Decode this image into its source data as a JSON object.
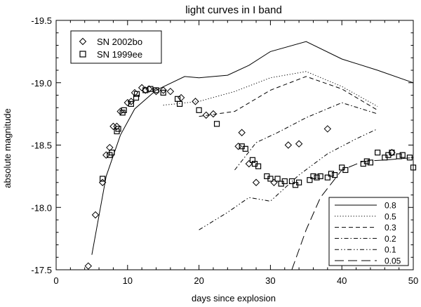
{
  "chart_data": {
    "type": "scatter",
    "title": "light curves in I band",
    "xlabel": "days since explosion",
    "ylabel": "absolute magnitude",
    "xlim": [
      0,
      50
    ],
    "ylim": [
      -17.5,
      -19.5
    ],
    "y_axis_inverted": true,
    "x_ticks": [
      0,
      10,
      20,
      30,
      40,
      50
    ],
    "x_tick_labels": [
      "0",
      "10",
      "20",
      "30",
      "40",
      "50"
    ],
    "y_ticks": [
      -19.5,
      -19.0,
      -18.5,
      -18.0,
      -17.5
    ],
    "y_tick_labels": [
      "-19.5",
      "-19.0",
      "-18.5",
      "-18.0",
      "-17.5"
    ],
    "grid": false,
    "marker_legend": {
      "placement": "top-left",
      "entries": [
        {
          "label": "SN 2002bo",
          "marker": "diamond"
        },
        {
          "label": "SN 1999ee",
          "marker": "square"
        }
      ]
    },
    "line_legend": {
      "placement": "bottom-right",
      "entries": [
        {
          "label": "0.8",
          "style": "solid"
        },
        {
          "label": "0.5",
          "style": "dotted"
        },
        {
          "label": "0.3",
          "style": "dashed"
        },
        {
          "label": "0.2",
          "style": "dash-dot"
        },
        {
          "label": "0.1",
          "style": "dash-dot-dot"
        },
        {
          "label": "0.05",
          "style": "long-dash"
        }
      ]
    },
    "points": [
      {
        "name": "SN 2002bo",
        "marker": "diamond",
        "x": [
          4.5,
          5.5,
          6.5,
          7,
          7.5,
          8,
          8.5,
          9,
          10,
          10.5,
          11,
          12,
          12.5,
          13,
          14,
          15,
          16,
          17.5,
          19.5,
          21,
          22,
          25.5,
          26,
          27,
          28,
          30.5,
          32.5,
          34,
          38,
          47
        ],
        "y": [
          -17.53,
          -17.94,
          -18.2,
          -18.42,
          -18.48,
          -18.65,
          -18.65,
          -18.77,
          -18.84,
          -18.85,
          -18.92,
          -18.96,
          -18.94,
          -18.95,
          -18.93,
          -18.94,
          -18.93,
          -18.88,
          -18.85,
          -18.74,
          -18.75,
          -18.49,
          -18.6,
          -18.35,
          -18.2,
          -18.2,
          -18.5,
          -18.51,
          -18.63,
          -18.44
        ]
      },
      {
        "name": "SN 1999ee",
        "marker": "square",
        "x": [
          6.5,
          7.5,
          7.8,
          8.5,
          8.7,
          9.3,
          9.5,
          10.5,
          11.2,
          11.3,
          12.5,
          13.2,
          14,
          15,
          17,
          17.3,
          20,
          22.5,
          26,
          26.5,
          27.5,
          27.8,
          28.3,
          29.5,
          30,
          31,
          31.5,
          32,
          33,
          33.5,
          34,
          35.5,
          36,
          36.5,
          37,
          38,
          38.5,
          39,
          40,
          40.5,
          43,
          43.5,
          44,
          45,
          46,
          46.5,
          47,
          48,
          48.5,
          49.5,
          50
        ],
        "y": [
          -18.23,
          -18.42,
          -18.44,
          -18.61,
          -18.63,
          -18.76,
          -18.78,
          -18.83,
          -18.88,
          -18.91,
          -18.94,
          -18.95,
          -18.94,
          -18.92,
          -18.87,
          -18.83,
          -18.78,
          -18.67,
          -18.49,
          -18.47,
          -18.38,
          -18.35,
          -18.33,
          -18.25,
          -18.23,
          -18.23,
          -18.19,
          -18.21,
          -18.21,
          -18.18,
          -18.2,
          -18.22,
          -18.25,
          -18.24,
          -18.25,
          -18.24,
          -18.27,
          -18.26,
          -18.32,
          -18.3,
          -18.35,
          -18.37,
          -18.36,
          -18.44,
          -18.4,
          -18.42,
          -18.44,
          -18.41,
          -18.42,
          -18.4,
          -18.32
        ]
      }
    ],
    "series": [
      {
        "name": "0.8",
        "style": "solid",
        "x": [
          5,
          7,
          9,
          11,
          14,
          18,
          20,
          22,
          24,
          27,
          30,
          35,
          40,
          45,
          50
        ],
        "y": [
          -17.62,
          -18.25,
          -18.58,
          -18.79,
          -18.94,
          -19.05,
          -19.04,
          -19.05,
          -19.06,
          -19.14,
          -19.25,
          -19.33,
          -19.19,
          -19.1,
          -19.0
        ]
      },
      {
        "name": "0.5",
        "style": "dotted",
        "x": [
          15,
          20,
          25,
          30,
          35,
          40,
          45
        ],
        "y": [
          -18.82,
          -18.85,
          -18.93,
          -19.04,
          -19.09,
          -18.97,
          -18.81
        ]
      },
      {
        "name": "0.3",
        "style": "dashed",
        "x": [
          20,
          25,
          30,
          35,
          40,
          45
        ],
        "y": [
          -18.73,
          -18.77,
          -18.94,
          -19.05,
          -18.95,
          -18.78
        ]
      },
      {
        "name": "0.2",
        "style": "dash-dot",
        "x": [
          25,
          28,
          31,
          35,
          40,
          45
        ],
        "y": [
          -18.3,
          -18.52,
          -18.6,
          -18.72,
          -18.84,
          -18.75
        ]
      },
      {
        "name": "0.1",
        "style": "dash-dot-dot",
        "x": [
          20,
          24,
          27,
          30,
          34,
          38,
          42,
          45
        ],
        "y": [
          -17.82,
          -17.96,
          -18.08,
          -18.05,
          -18.26,
          -18.43,
          -18.55,
          -18.63
        ]
      },
      {
        "name": "0.05",
        "style": "long-dash",
        "x": [
          33,
          35,
          37,
          40,
          43,
          46,
          50
        ],
        "y": [
          -17.5,
          -17.82,
          -18.08,
          -18.3,
          -18.37,
          -18.38,
          -18.4
        ]
      }
    ]
  }
}
